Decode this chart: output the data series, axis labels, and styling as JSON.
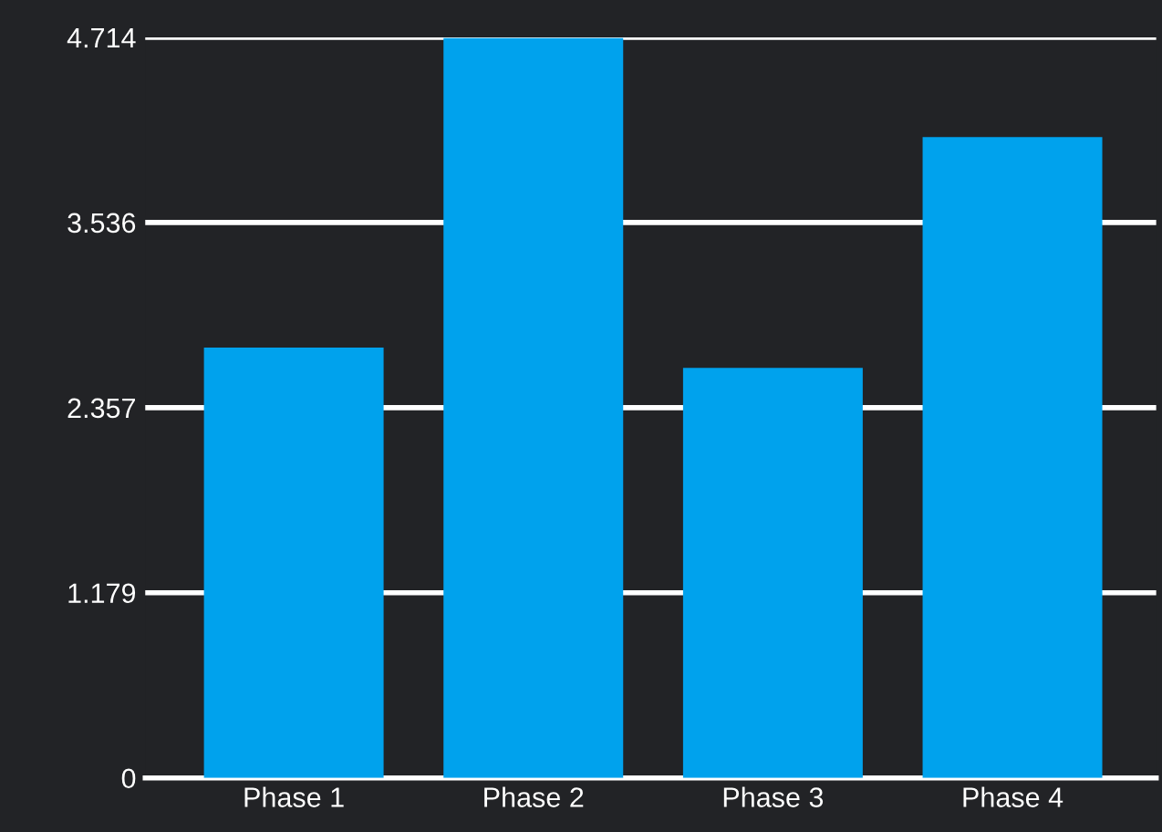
{
  "chart_data": {
    "type": "bar",
    "categories": [
      "Phase 1",
      "Phase 2",
      "Phase 3",
      "Phase 4"
    ],
    "values": [
      2.74,
      4.71,
      2.61,
      4.08
    ],
    "color": "#00a2ed",
    "ylim": [
      0,
      4.714
    ],
    "yticks": [
      0,
      1.179,
      2.357,
      3.536,
      4.714
    ],
    "grid": "y",
    "legend": false
  }
}
